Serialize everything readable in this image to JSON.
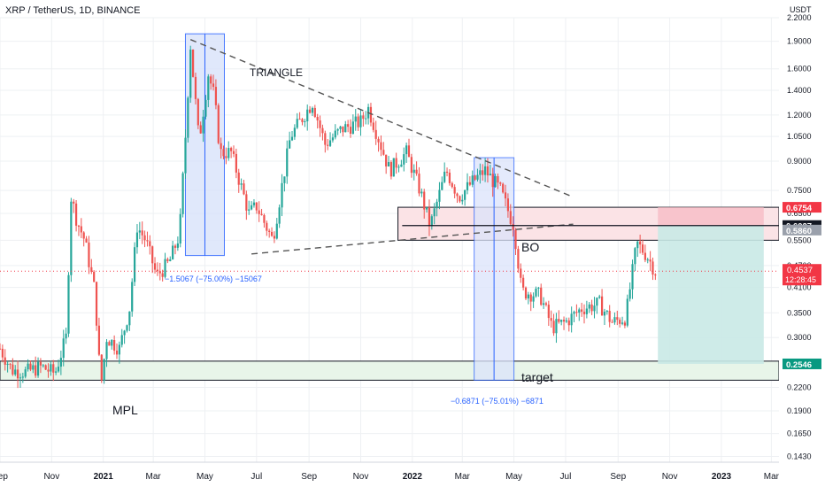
{
  "title": "XRP / TetherUS, 1D, BINANCE",
  "colors": {
    "up": "#26a69a",
    "down": "#ef5350",
    "measure_fill": "#dbe4fb",
    "measure_line": "#2962ff",
    "zone_fill": "#fbe3e6",
    "support_fill": "#e8f5e9",
    "stop_fill": "#f8bcc6",
    "profit_fill": "#c9e9e5",
    "price_label": "#f23645",
    "target_label": "#089981",
    "grid": "#eef0f3",
    "axis_text": "#131722"
  },
  "chart_data": {
    "type": "candlestick",
    "title": "XRP / TetherUS, 1D, BINANCE",
    "y_axis": {
      "unit": "USDT",
      "scale": "log",
      "range": [
        0.138,
        2.2
      ],
      "ticks": [
        "2.2000",
        "1.9000",
        "1.6000",
        "1.4000",
        "1.2000",
        "1.0500",
        "0.9000",
        "0.7500",
        "0.6500",
        "0.5500",
        "0.4700",
        "0.4100",
        "0.3500",
        "0.3000",
        "0.2550",
        "0.2200",
        "0.1900",
        "0.1650",
        "0.1430"
      ]
    },
    "x_axis": {
      "range": [
        "2020-09-01",
        "2023-03-10"
      ],
      "ticks": [
        {
          "label": "Sep",
          "date": "2020-09-01"
        },
        {
          "label": "Nov",
          "date": "2020-11-01"
        },
        {
          "label": "2021",
          "date": "2021-01-01"
        },
        {
          "label": "Mar",
          "date": "2021-03-01"
        },
        {
          "label": "May",
          "date": "2021-05-01"
        },
        {
          "label": "Jul",
          "date": "2021-07-01"
        },
        {
          "label": "Sep",
          "date": "2021-09-01"
        },
        {
          "label": "Nov",
          "date": "2021-11-01"
        },
        {
          "label": "2022",
          "date": "2022-01-01"
        },
        {
          "label": "Mar",
          "date": "2022-03-01"
        },
        {
          "label": "May",
          "date": "2022-05-01"
        },
        {
          "label": "Jul",
          "date": "2022-07-01"
        },
        {
          "label": "Sep",
          "date": "2022-09-01"
        },
        {
          "label": "Nov",
          "date": "2022-11-01"
        },
        {
          "label": "2023",
          "date": "2023-01-01"
        },
        {
          "label": "Mar",
          "date": "2023-03-01"
        }
      ]
    },
    "price_path": [
      [
        "2020-09-01",
        0.28
      ],
      [
        "2020-09-15",
        0.245
      ],
      [
        "2020-10-01",
        0.242
      ],
      [
        "2020-10-20",
        0.25
      ],
      [
        "2020-11-05",
        0.24
      ],
      [
        "2020-11-18",
        0.3
      ],
      [
        "2020-11-24",
        0.72
      ],
      [
        "2020-12-01",
        0.62
      ],
      [
        "2020-12-10",
        0.55
      ],
      [
        "2020-12-22",
        0.4
      ],
      [
        "2020-12-29",
        0.22
      ],
      [
        "2021-01-05",
        0.3
      ],
      [
        "2021-01-20",
        0.28
      ],
      [
        "2021-02-01",
        0.36
      ],
      [
        "2021-02-10",
        0.6
      ],
      [
        "2021-02-20",
        0.55
      ],
      [
        "2021-03-05",
        0.44
      ],
      [
        "2021-03-20",
        0.48
      ],
      [
        "2021-04-01",
        0.57
      ],
      [
        "2021-04-08",
        1.05
      ],
      [
        "2021-04-14",
        1.85
      ],
      [
        "2021-04-24",
        1.02
      ],
      [
        "2021-05-05",
        1.55
      ],
      [
        "2021-05-12",
        1.35
      ],
      [
        "2021-05-19",
        0.95
      ],
      [
        "2021-06-01",
        0.95
      ],
      [
        "2021-06-22",
        0.65
      ],
      [
        "2021-07-01",
        0.68
      ],
      [
        "2021-07-20",
        0.55
      ],
      [
        "2021-08-10",
        1.05
      ],
      [
        "2021-09-05",
        1.3
      ],
      [
        "2021-09-20",
        1.0
      ],
      [
        "2021-10-10",
        1.1
      ],
      [
        "2021-11-01",
        1.15
      ],
      [
        "2021-11-10",
        1.25
      ],
      [
        "2021-12-05",
        0.85
      ],
      [
        "2021-12-25",
        0.95
      ],
      [
        "2022-01-10",
        0.75
      ],
      [
        "2022-01-22",
        0.6
      ],
      [
        "2022-02-10",
        0.85
      ],
      [
        "2022-02-25",
        0.72
      ],
      [
        "2022-03-15",
        0.8
      ],
      [
        "2022-03-28",
        0.85
      ],
      [
        "2022-04-15",
        0.75
      ],
      [
        "2022-05-01",
        0.6
      ],
      [
        "2022-05-10",
        0.4
      ],
      [
        "2022-06-01",
        0.39
      ],
      [
        "2022-06-15",
        0.32
      ],
      [
        "2022-07-01",
        0.33
      ],
      [
        "2022-07-20",
        0.36
      ],
      [
        "2022-08-10",
        0.37
      ],
      [
        "2022-08-25",
        0.33
      ],
      [
        "2022-09-10",
        0.34
      ],
      [
        "2022-09-23",
        0.54
      ],
      [
        "2022-10-05",
        0.5
      ],
      [
        "2022-10-15",
        0.4537
      ]
    ],
    "last_price": "0.4537",
    "countdown": "12:28:45",
    "levels": [
      {
        "value": 0.6754,
        "label": "0.6754"
      },
      {
        "value": 0.6027,
        "label": "0.6027"
      },
      {
        "value": 0.586,
        "label": "0.5860"
      },
      {
        "value": 0.2546,
        "label": "0.2546"
      }
    ],
    "annotations": {
      "triangle": "TRIANGLE",
      "breakout": "BO",
      "target": "target",
      "mpl": "MPL",
      "measure1": "−1.5067 (−75.00%) −15067",
      "measure2": "−0.6871 (−75.01%) −6871"
    }
  }
}
